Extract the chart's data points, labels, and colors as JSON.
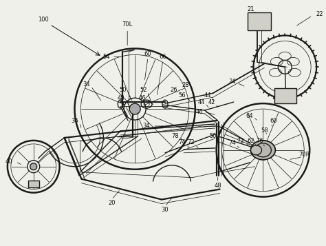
{
  "bg_color": "#f0f0eb",
  "line_color": "#1a1a1a",
  "label_color": "#111111",
  "lw_main": 1.0,
  "lw_thin": 0.55,
  "lw_thick": 1.6,
  "lw_rim": 1.8,
  "fs": 6.0
}
